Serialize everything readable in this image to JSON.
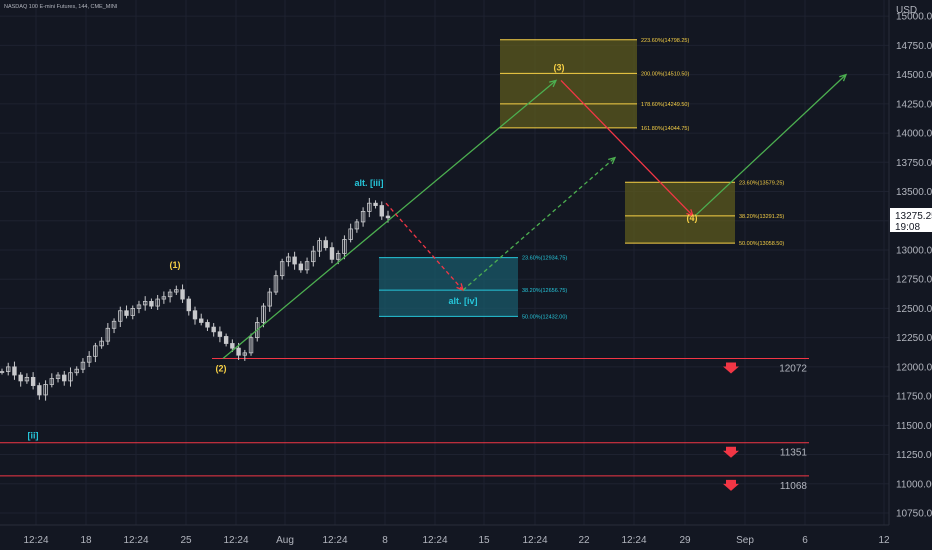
{
  "header": {
    "symbol_label": "NASDAQ 100 E-mini Futures, 144, CME_MINI"
  },
  "colors": {
    "background": "#131722",
    "grid": "#1e2230",
    "candle": "#c8c9cc",
    "green": "#4caf50",
    "red": "#f23645",
    "yellow": "#f7d046",
    "cyan": "#26c6da",
    "zone_yellow": "#5c5a1e",
    "zone_cyan": "#1a5a6a"
  },
  "chart_data": {
    "type": "candlestick",
    "currency_label": "USD",
    "price_ticks": [
      "15000.00",
      "14750.00",
      "14500.00",
      "14250.00",
      "14000.00",
      "13750.00",
      "13500.00",
      "13250.00",
      "13000.00",
      "12750.00",
      "12500.00",
      "12250.00",
      "12000.00",
      "11750.00",
      "11500.00",
      "11250.00",
      "11000.00",
      "10750.00"
    ],
    "time_ticks": [
      "12:24",
      "18",
      "12:24",
      "25",
      "12:24",
      "Aug",
      "12:24",
      "8",
      "12:24",
      "15",
      "12:24",
      "22",
      "12:24",
      "29",
      "Sep",
      "6",
      "12"
    ],
    "current_price": {
      "price": "13275.25",
      "countdown": "19:08"
    },
    "price_series": [
      11960,
      12000,
      11930,
      11880,
      11910,
      11840,
      11760,
      11850,
      11900,
      11930,
      11880,
      11950,
      11980,
      12040,
      12090,
      12180,
      12220,
      12330,
      12390,
      12480,
      12440,
      12500,
      12530,
      12560,
      12520,
      12580,
      12600,
      12640,
      12660,
      12580,
      12480,
      12410,
      12380,
      12340,
      12300,
      12260,
      12200,
      12160,
      12100,
      12120,
      12250,
      12380,
      12520,
      12640,
      12780,
      12900,
      12940,
      12880,
      12830,
      12900,
      12990,
      13080,
      13020,
      12920,
      12970,
      13090,
      13180,
      13240,
      13330,
      13400,
      13380,
      13290,
      13275
    ],
    "waves": [
      {
        "label": "[ii]",
        "price": 11500,
        "color": "cyan"
      },
      {
        "label": "(1)",
        "price": 12700,
        "color": "yellow"
      },
      {
        "label": "(2)",
        "price": 12072,
        "color": "yellow"
      },
      {
        "label": "alt. [iii]",
        "price": 13400,
        "color": "cyan"
      },
      {
        "label": "(3)",
        "price": 14450,
        "color": "yellow"
      },
      {
        "label": "alt. [iv]",
        "price": 12656.75,
        "color": "cyan"
      },
      {
        "label": "(4)",
        "price": 13291.25,
        "color": "yellow"
      }
    ],
    "support_levels": [
      {
        "label": "12072",
        "price": 12072
      },
      {
        "label": "11351",
        "price": 11351
      },
      {
        "label": "11068",
        "price": 11068
      }
    ],
    "fib_zones": [
      {
        "name": "wave-3-target",
        "levels": [
          {
            "label": "223.60%(14798.25)",
            "price": 14798.25
          },
          {
            "label": "200.00%(14510.50)",
            "price": 14510.5
          },
          {
            "label": "178.60%(14249.50)",
            "price": 14249.5
          },
          {
            "label": "161.80%(14044.75)",
            "price": 14044.75
          }
        ]
      },
      {
        "name": "wave-4-target",
        "levels": [
          {
            "label": "23.60%(13579.25)",
            "price": 13579.25
          },
          {
            "label": "38.20%(13291.25)",
            "price": 13291.25
          },
          {
            "label": "50.00%(13058.50)",
            "price": 13058.5
          }
        ]
      },
      {
        "name": "alt-wave-iv-target",
        "levels": [
          {
            "label": "23.60%(12934.75)",
            "price": 12934.75
          },
          {
            "label": "38.20%(12656.75)",
            "price": 12656.75
          },
          {
            "label": "50.00%(12432.00)",
            "price": 12432.0
          }
        ]
      }
    ],
    "projection_paths": [
      {
        "name": "main-up-to-wave-3",
        "style": "solid",
        "color": "green",
        "from_price": 12072,
        "to_price": 14450
      },
      {
        "name": "main-down-to-wave-4",
        "style": "solid",
        "color": "red",
        "from_price": 14450,
        "to_price": 13291.25
      },
      {
        "name": "main-up-after-wave-4",
        "style": "solid",
        "color": "green",
        "from_price": 13291.25,
        "to_price": 14500
      },
      {
        "name": "alt-down-to-wave-iv",
        "style": "dashed",
        "color": "red",
        "from_price": 13400,
        "to_price": 12656.75
      },
      {
        "name": "alt-up-after-wave-iv",
        "style": "dashed",
        "color": "green",
        "from_price": 12656.75,
        "to_price": 13790
      }
    ]
  }
}
